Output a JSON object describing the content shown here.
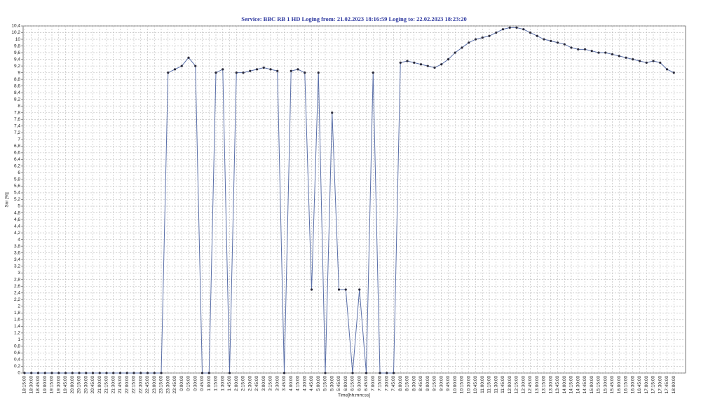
{
  "chart_data": {
    "type": "line",
    "title": "Service: BBC RB 1 HD   Loging from: 21.02.2023 18:16:59   Loging to: 22.02.2023 18:23:20",
    "x_label": "Time[hh:mm:ss]",
    "y_label": "Snr [%]",
    "grid": true,
    "categories": [
      "18:15:00",
      "18:30:00",
      "18:45:00",
      "19:00:00",
      "19:15:00",
      "19:30:00",
      "19:45:00",
      "20:00:00",
      "20:15:00",
      "20:30:00",
      "20:45:00",
      "21:00:00",
      "21:15:00",
      "21:30:00",
      "21:45:00",
      "22:00:00",
      "22:15:00",
      "22:30:00",
      "22:45:00",
      "23:00:00",
      "23:15:00",
      "23:30:00",
      "23:45:00",
      "0:00:00",
      "0:15:00",
      "0:30:00",
      "0:45:00",
      "1:00:00",
      "1:15:00",
      "1:30:00",
      "1:45:00",
      "2:00:00",
      "2:15:00",
      "2:30:00",
      "2:45:00",
      "3:00:00",
      "3:15:00",
      "3:30:00",
      "3:45:00",
      "4:00:00",
      "4:15:00",
      "4:30:00",
      "4:45:00",
      "5:00:00",
      "5:15:00",
      "5:30:00",
      "5:45:00",
      "6:00:00",
      "6:15:00",
      "6:30:00",
      "6:45:00",
      "7:00:00",
      "7:15:00",
      "7:30:00",
      "7:45:00",
      "8:00:00",
      "8:15:00",
      "8:30:00",
      "8:45:00",
      "9:00:00",
      "9:15:00",
      "9:30:00",
      "9:45:00",
      "10:00:00",
      "10:15:00",
      "10:30:00",
      "10:45:00",
      "11:00:00",
      "11:15:00",
      "11:30:00",
      "11:45:00",
      "12:00:00",
      "12:15:00",
      "12:30:00",
      "12:45:00",
      "13:00:00",
      "13:15:00",
      "13:30:00",
      "13:45:00",
      "14:00:00",
      "14:15:00",
      "14:30:00",
      "14:45:00",
      "15:00:00",
      "15:15:00",
      "15:30:00",
      "15:45:00",
      "16:00:00",
      "16:15:00",
      "16:30:00",
      "16:45:00",
      "17:00:00",
      "17:15:00",
      "17:30:00",
      "17:45:00",
      "18:00:00"
    ],
    "series": [
      {
        "name": "Snr",
        "color": "#5a6fa8",
        "marker_color": "#2a2a3a",
        "values": [
          0,
          0,
          0,
          0,
          0,
          0,
          0,
          0,
          0,
          0,
          0,
          0,
          0,
          0,
          0,
          0,
          0,
          0,
          0,
          0,
          0,
          9.0,
          9.1,
          9.2,
          9.45,
          9.2,
          0,
          0,
          9.0,
          9.1,
          0,
          9.0,
          9.0,
          9.05,
          9.1,
          9.15,
          9.1,
          9.05,
          0,
          9.05,
          9.1,
          9.0,
          2.5,
          9.0,
          0,
          7.8,
          2.5,
          2.5,
          0,
          2.5,
          0,
          9.0,
          0,
          0,
          0,
          9.3,
          9.35,
          9.3,
          9.25,
          9.2,
          9.15,
          9.25,
          9.4,
          9.6,
          9.75,
          9.9,
          10.0,
          10.05,
          10.1,
          10.2,
          10.3,
          10.35,
          10.35,
          10.3,
          10.2,
          10.1,
          10.0,
          9.95,
          9.9,
          9.85,
          9.75,
          9.7,
          9.7,
          9.65,
          9.6,
          9.6,
          9.55,
          9.5,
          9.45,
          9.4,
          9.35,
          9.3,
          9.35,
          9.3,
          9.1,
          9.0
        ]
      }
    ],
    "ylim": [
      0,
      10.4
    ],
    "yticks": [
      0,
      {
        "value": 0.2,
        "label": "0,2"
      },
      {
        "value": 0.4,
        "label": "0,4"
      },
      {
        "value": 0.6,
        "label": "0,6"
      },
      {
        "value": 0.8,
        "label": "0,8"
      },
      1,
      {
        "value": 1.2,
        "label": "1,2"
      },
      {
        "value": 1.4,
        "label": "1,4"
      },
      {
        "value": 1.6,
        "label": "1,6"
      },
      {
        "value": 1.8,
        "label": "1,8"
      },
      2,
      {
        "value": 2.2,
        "label": "2,2"
      },
      {
        "value": 2.4,
        "label": "2,4"
      },
      {
        "value": 2.6,
        "label": "2,6"
      },
      {
        "value": 2.8,
        "label": "2,8"
      },
      3,
      {
        "value": 3.2,
        "label": "3,2"
      },
      {
        "value": 3.4,
        "label": "3,4"
      },
      {
        "value": 3.6,
        "label": "3,6"
      },
      {
        "value": 3.8,
        "label": "3,8"
      },
      4,
      {
        "value": 4.2,
        "label": "4,2"
      },
      {
        "value": 4.4,
        "label": "4,4"
      },
      {
        "value": 4.6,
        "label": "4,6"
      },
      {
        "value": 4.8,
        "label": "4,8"
      },
      5,
      {
        "value": 5.2,
        "label": "5,2"
      },
      {
        "value": 5.4,
        "label": "5,4"
      },
      {
        "value": 5.6,
        "label": "5,6"
      },
      {
        "value": 5.8,
        "label": "5,8"
      },
      6,
      {
        "value": 6.2,
        "label": "6,2"
      },
      {
        "value": 6.4,
        "label": "6,4"
      },
      {
        "value": 6.6,
        "label": "6,6"
      },
      {
        "value": 6.8,
        "label": "6,8"
      },
      7,
      {
        "value": 7.2,
        "label": "7,2"
      },
      {
        "value": 7.4,
        "label": "7,4"
      },
      {
        "value": 7.6,
        "label": "7,6"
      },
      {
        "value": 7.8,
        "label": "7,8"
      },
      8,
      {
        "value": 8.2,
        "label": "8,2"
      },
      {
        "value": 8.4,
        "label": "8,4"
      },
      {
        "value": 8.6,
        "label": "8,6"
      },
      {
        "value": 8.8,
        "label": "8,8"
      },
      9,
      {
        "value": 9.2,
        "label": "9,2"
      },
      {
        "value": 9.4,
        "label": "9,4"
      },
      {
        "value": 9.6,
        "label": "9,6"
      },
      {
        "value": 9.8,
        "label": "9,8"
      },
      10,
      {
        "value": 10.2,
        "label": "10,2"
      },
      {
        "value": 10.4,
        "label": "10,4"
      }
    ]
  }
}
